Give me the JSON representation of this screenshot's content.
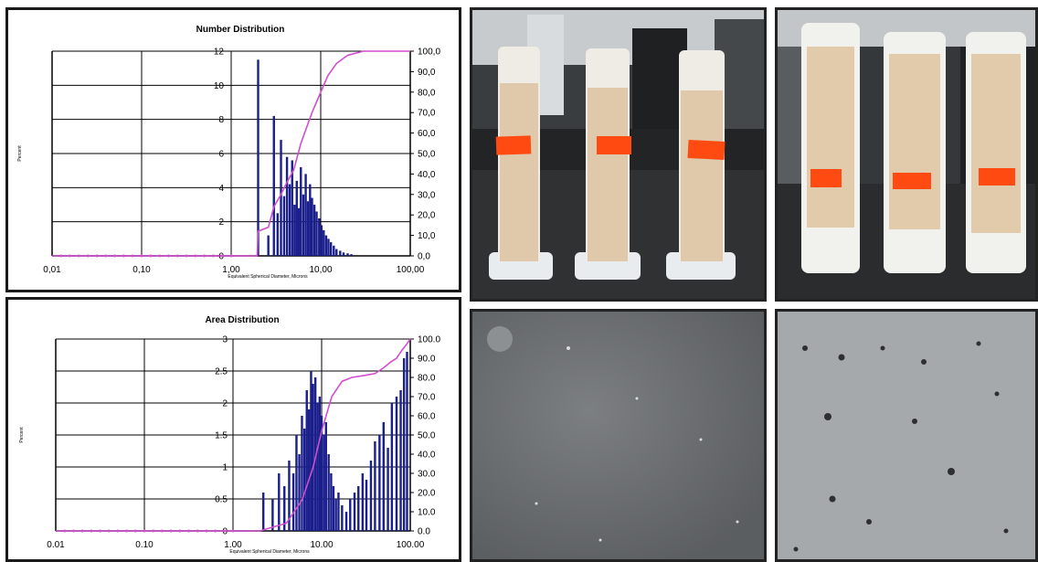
{
  "chart_data": [
    {
      "type": "bar",
      "title": "Number Distribution",
      "ylabel": "Percent",
      "xlabel": "Equivalent Spherical Diameter, Microns",
      "x_scale": "log",
      "xlim": [
        0.01,
        100
      ],
      "ylim": [
        0,
        12
      ],
      "y2lim": [
        0,
        100
      ],
      "x_ticks": [
        "0,01",
        "0,10",
        "1,00",
        "10,00",
        "100,00"
      ],
      "y_ticks": [
        "0",
        "2",
        "4",
        "6",
        "8",
        "10",
        "12"
      ],
      "y2_ticks": [
        "0,0",
        "10,0",
        "20,0",
        "30,0",
        "40,0",
        "50,0",
        "60,0",
        "70,0",
        "80,0",
        "90,0",
        "100,0"
      ],
      "bar_color": "#1a1f8c",
      "cumulative_color": "#d04fd0",
      "bars": {
        "x": [
          2.0,
          2.6,
          3.0,
          3.3,
          3.6,
          3.9,
          4.2,
          4.5,
          4.8,
          5.1,
          5.4,
          5.7,
          6.0,
          6.4,
          6.8,
          7.2,
          7.6,
          8.0,
          8.5,
          9.0,
          9.6,
          10.2,
          10.8,
          11.5,
          12.2,
          13.0,
          14.0,
          15.0,
          16.5,
          18.0,
          20.0,
          22.0
        ],
        "values": [
          11.5,
          1.2,
          8.2,
          2.5,
          6.8,
          3.5,
          5.8,
          4.2,
          5.6,
          3.0,
          4.4,
          2.8,
          5.2,
          3.6,
          4.8,
          3.2,
          4.2,
          3.4,
          3.0,
          2.6,
          2.2,
          1.8,
          1.5,
          1.2,
          1.0,
          0.8,
          0.6,
          0.4,
          0.3,
          0.2,
          0.15,
          0.1
        ]
      },
      "cumulative": {
        "x": [
          0.01,
          1.95,
          2.0,
          2.6,
          3.0,
          3.6,
          4.2,
          5.0,
          6.0,
          7.0,
          8.0,
          10.0,
          12.0,
          15.0,
          20.0,
          30.0,
          100.0
        ],
        "values": [
          0,
          0,
          12,
          14,
          24,
          30,
          36,
          42,
          55,
          63,
          70,
          80,
          88,
          94,
          98,
          100,
          100
        ]
      }
    },
    {
      "type": "bar",
      "title": "Area Distribution",
      "ylabel": "Percent",
      "xlabel": "Equivalent Spherical Diameter, Microns",
      "x_scale": "log",
      "xlim": [
        0.01,
        100
      ],
      "ylim": [
        0,
        3
      ],
      "y2lim": [
        0,
        100
      ],
      "x_ticks": [
        "0.01",
        "0.10",
        "1.00",
        "10.00",
        "100.00"
      ],
      "y_ticks": [
        "0",
        "0.5",
        "1",
        "1.5",
        "2",
        "2.5",
        "3"
      ],
      "y2_ticks": [
        "0.0",
        "10.0",
        "20.0",
        "30.0",
        "40.0",
        "50.0",
        "60.0",
        "70.0",
        "80.0",
        "90.0",
        "100.0"
      ],
      "bar_color": "#1a1f8c",
      "cumulative_color": "#d04fd0",
      "bars": {
        "x": [
          2.2,
          2.8,
          3.3,
          3.8,
          4.3,
          4.8,
          5.2,
          5.6,
          6.0,
          6.4,
          6.8,
          7.2,
          7.6,
          8.0,
          8.5,
          9.0,
          9.5,
          10.0,
          10.6,
          11.2,
          12.0,
          12.8,
          13.6,
          14.5,
          15.5,
          17.0,
          19.0,
          21.0,
          23.5,
          26.0,
          29.0,
          32.0,
          36.0,
          40.0,
          45.0,
          50.0,
          56.0,
          62.0,
          70.0,
          78.0,
          85.0,
          92.0
        ],
        "values": [
          0.6,
          0.5,
          0.9,
          0.7,
          1.1,
          0.9,
          1.5,
          1.2,
          1.8,
          1.6,
          2.2,
          1.9,
          2.5,
          2.3,
          2.4,
          2.0,
          2.1,
          1.8,
          1.5,
          1.7,
          1.2,
          0.9,
          0.7,
          0.5,
          0.6,
          0.4,
          0.3,
          0.5,
          0.6,
          0.7,
          0.9,
          0.8,
          1.1,
          1.4,
          1.5,
          1.7,
          1.3,
          2.0,
          2.1,
          2.2,
          2.7,
          2.8
        ]
      },
      "cumulative": {
        "x": [
          0.01,
          2.0,
          4.0,
          6.0,
          8.0,
          10.0,
          13.0,
          17.0,
          22.0,
          30.0,
          40.0,
          50.0,
          60.0,
          70.0,
          80.0,
          90.0,
          100.0
        ],
        "values": [
          0,
          0,
          4,
          16,
          33,
          52,
          70,
          78,
          80,
          81,
          82,
          85,
          88,
          90,
          94,
          97,
          100
        ]
      }
    }
  ]
}
